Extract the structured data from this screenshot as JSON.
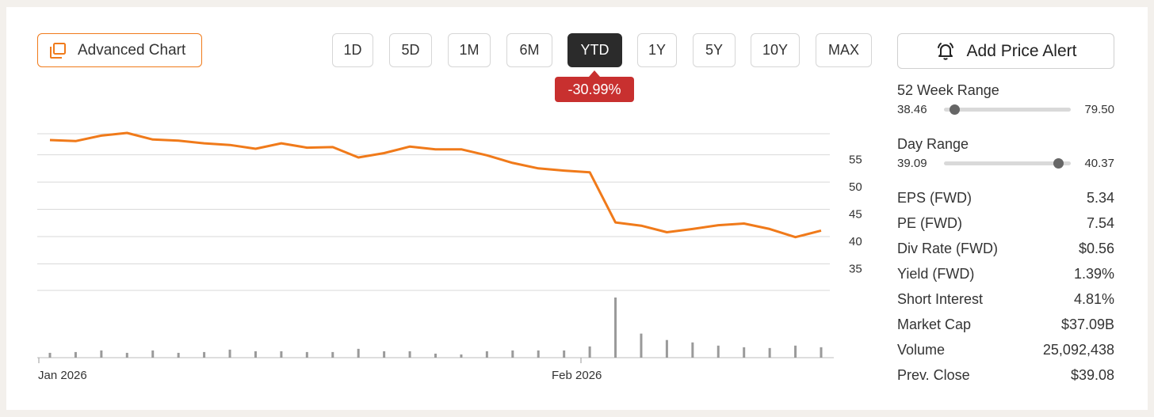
{
  "toolbar": {
    "advanced_chart_label": "Advanced Chart",
    "ranges": [
      "1D",
      "5D",
      "1M",
      "6M",
      "YTD",
      "1Y",
      "5Y",
      "10Y",
      "MAX"
    ],
    "active_range": "YTD",
    "change": "-30.99%",
    "alert_label": "Add Price Alert"
  },
  "colors": {
    "accent": "#f07a1a",
    "negative": "#c8302f",
    "volume": "#9a9a9a",
    "grid": "#d9d9d9"
  },
  "chart_data": {
    "type": "line",
    "y_ticks": [
      "55",
      "50",
      "45",
      "40",
      "35"
    ],
    "x_ticks": [
      "Jan 2026",
      "Feb 2026"
    ],
    "ylim": [
      30,
      59
    ],
    "grid": true,
    "series": [
      {
        "values": [
          57.7,
          57.5,
          58.5,
          59.0,
          57.8,
          57.6,
          57.1,
          56.8,
          56.1,
          57.1,
          56.3,
          56.4,
          54.5,
          55.3,
          56.5,
          56.0,
          56.0,
          54.9,
          53.5,
          52.5,
          52.1,
          51.8,
          42.6,
          42.0,
          40.8,
          41.4,
          42.1,
          42.4,
          41.4,
          39.9,
          41.1
        ]
      }
    ],
    "volume_values": [
      6,
      7,
      9,
      6,
      9,
      6,
      7,
      10,
      8,
      8,
      7,
      7,
      11,
      8,
      8,
      5,
      4,
      8,
      9,
      9,
      9,
      14,
      75,
      30,
      22,
      19,
      15,
      13,
      12,
      15,
      13
    ]
  },
  "stats": {
    "week52": {
      "label": "52 Week Range",
      "low": "38.46",
      "high": "79.50",
      "position": 0.08
    },
    "day": {
      "label": "Day Range",
      "low": "39.09",
      "high": "40.37",
      "position": 0.9
    },
    "rows": [
      {
        "label": "EPS (FWD)",
        "value": "5.34"
      },
      {
        "label": "PE (FWD)",
        "value": "7.54"
      },
      {
        "label": "Div Rate (FWD)",
        "value": "$0.56"
      },
      {
        "label": "Yield (FWD)",
        "value": "1.39%"
      },
      {
        "label": "Short Interest",
        "value": "4.81%"
      },
      {
        "label": "Market Cap",
        "value": "$37.09B"
      },
      {
        "label": "Volume",
        "value": "25,092,438"
      },
      {
        "label": "Prev. Close",
        "value": "$39.08"
      }
    ]
  }
}
